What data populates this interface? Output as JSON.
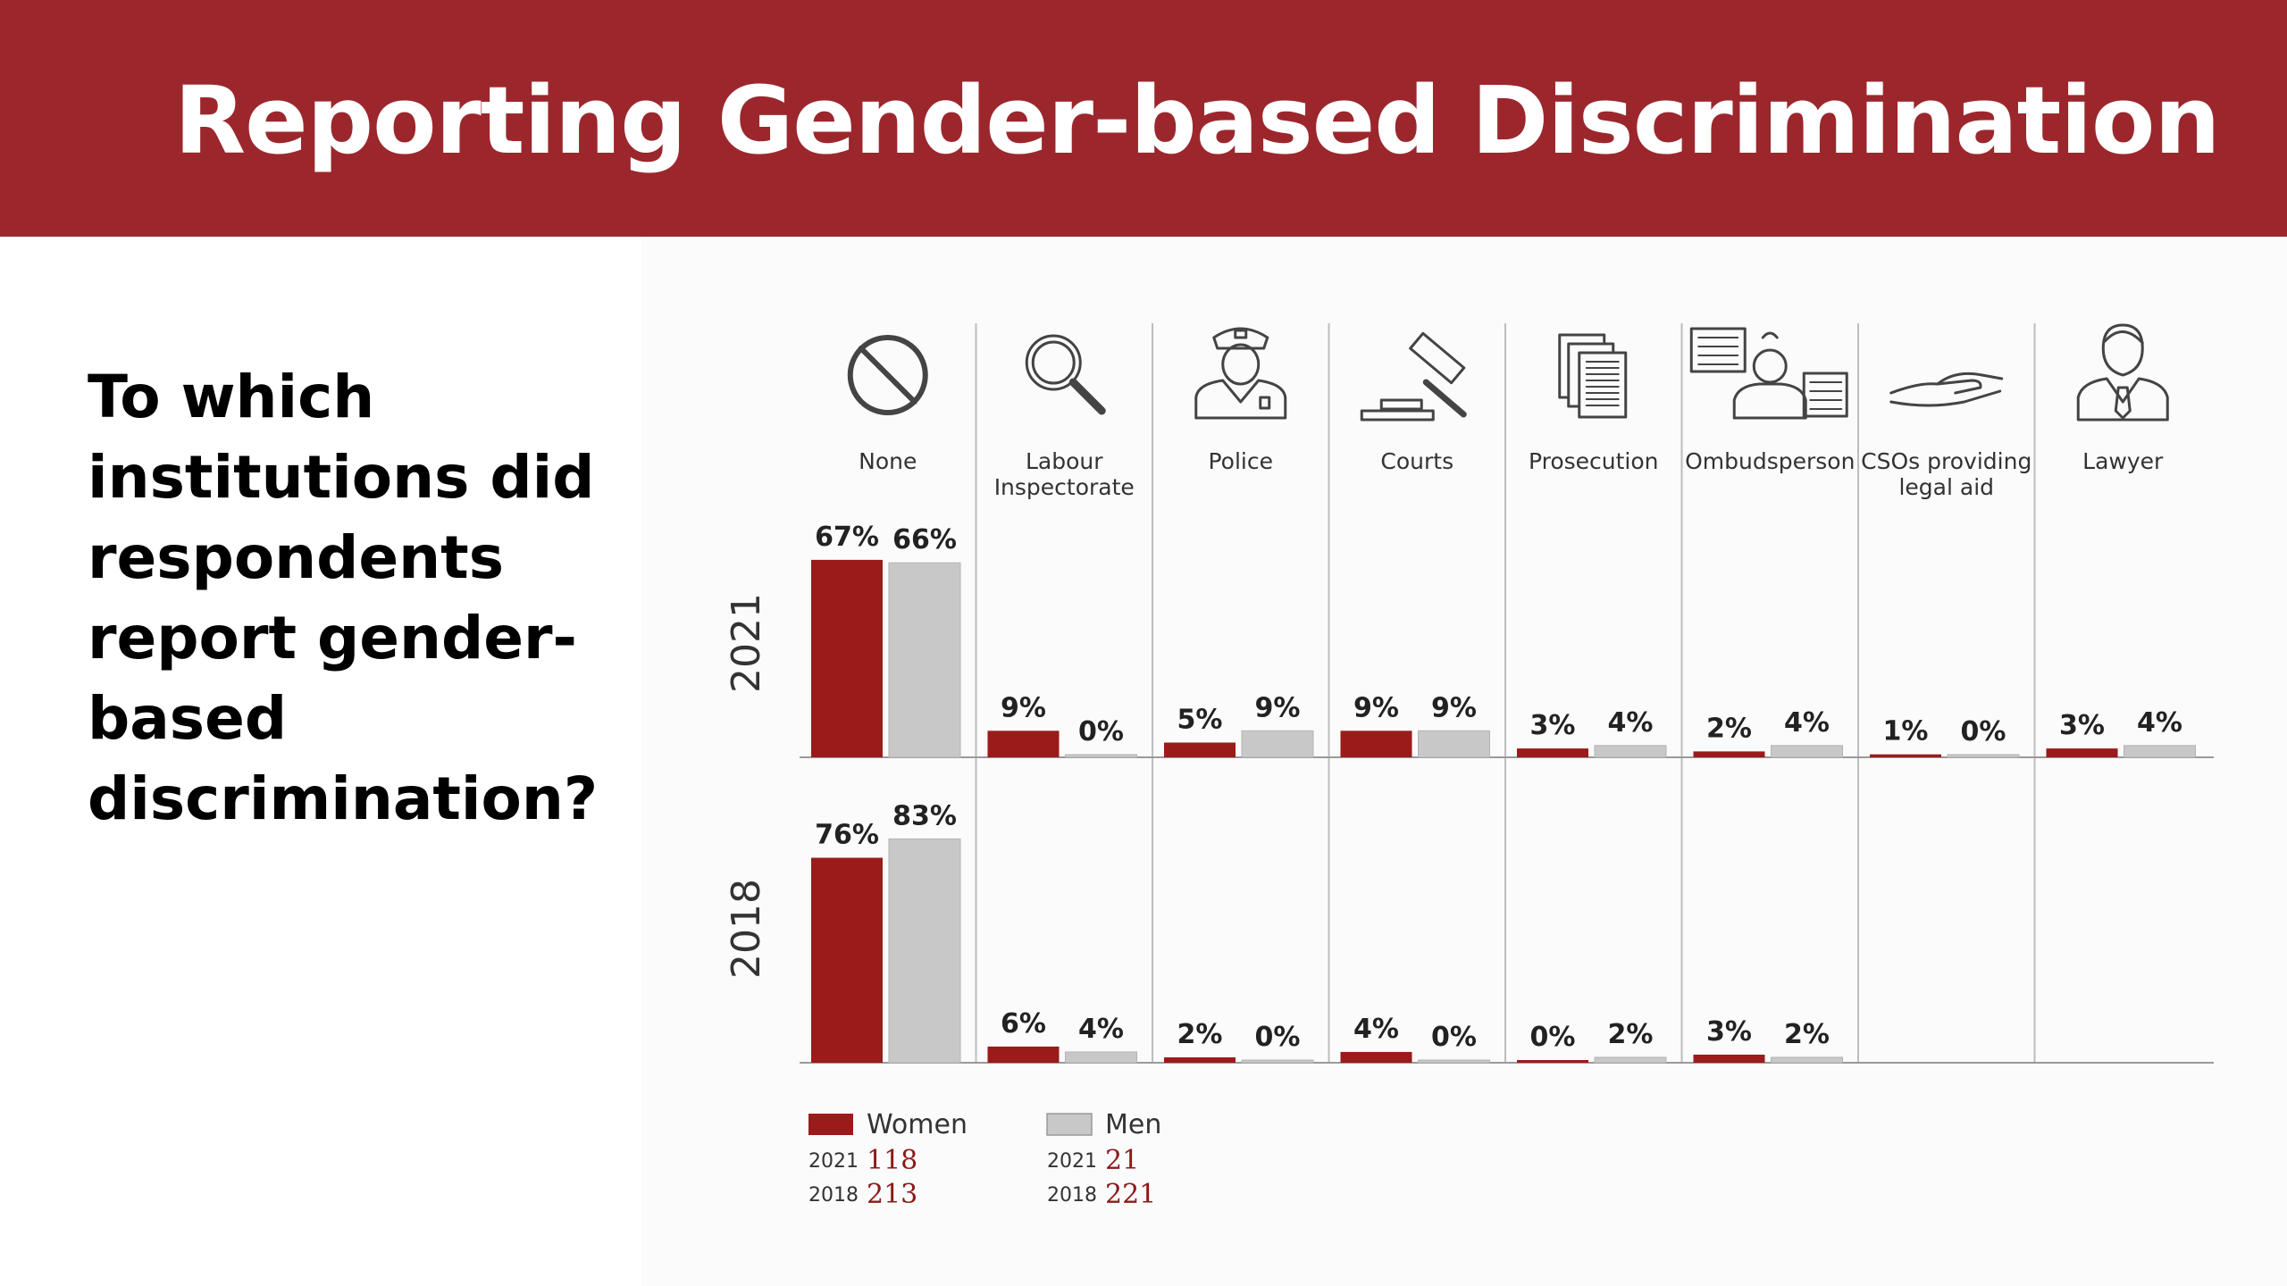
{
  "header": {
    "title": "Reporting Gender-based Discrimination"
  },
  "question": "To which institutions did respondents report gender-based discrimination?",
  "colors": {
    "banner": "#9b272d",
    "women": "#9b1b1b",
    "men": "#c8c8c8",
    "sample_text": "#8b1a1a"
  },
  "chart_data": {
    "type": "bar",
    "categories": [
      {
        "label": "None",
        "label_lines": [
          "None"
        ],
        "icon": "prohibited-icon"
      },
      {
        "label": "Labour Inspectorate",
        "label_lines": [
          "Labour",
          "Inspectorate"
        ],
        "icon": "magnifier-icon"
      },
      {
        "label": "Police",
        "label_lines": [
          "Police"
        ],
        "icon": "police-officer-icon"
      },
      {
        "label": "Courts",
        "label_lines": [
          "Courts"
        ],
        "icon": "gavel-icon"
      },
      {
        "label": "Prosecution",
        "label_lines": [
          "Prosecution"
        ],
        "icon": "documents-icon"
      },
      {
        "label": "Ombudsperson",
        "label_lines": [
          "Ombudsperson"
        ],
        "icon": "ombudsperson-icon"
      },
      {
        "label": "CSOs providing legal aid",
        "label_lines": [
          "CSOs providing",
          "legal aid"
        ],
        "icon": "helping-hand-icon"
      },
      {
        "label": "Lawyer",
        "label_lines": [
          "Lawyer"
        ],
        "icon": "lawyer-icon"
      }
    ],
    "panels": [
      {
        "year": "2021",
        "series": [
          {
            "name": "Women",
            "values": [
              67,
              9,
              5,
              9,
              3,
              2,
              1,
              3
            ],
            "labels": [
              "67%",
              "9%",
              "5%",
              "9%",
              "3%",
              "2%",
              "1%",
              "3%"
            ]
          },
          {
            "name": "Men",
            "values": [
              66,
              0,
              9,
              9,
              4,
              4,
              0,
              4
            ],
            "labels": [
              "66%",
              "0%",
              "9%",
              "9%",
              "4%",
              "4%",
              "0%",
              "4%"
            ]
          }
        ]
      },
      {
        "year": "2018",
        "series": [
          {
            "name": "Women",
            "values": [
              76,
              6,
              2,
              4,
              0,
              3,
              null,
              null
            ],
            "labels": [
              "76%",
              "6%",
              "2%",
              "4%",
              "0%",
              "3%",
              "",
              ""
            ]
          },
          {
            "name": "Men",
            "values": [
              83,
              4,
              0,
              0,
              2,
              2,
              null,
              null
            ],
            "labels": [
              "83%",
              "4%",
              "0%",
              "0%",
              "2%",
              "2%",
              "",
              ""
            ]
          }
        ]
      }
    ],
    "unit": "%",
    "legend": {
      "placement": "bottom-left",
      "entries": [
        {
          "name": "Women",
          "samples": [
            {
              "year": "2021",
              "n": "118"
            },
            {
              "year": "2018",
              "n": "213"
            }
          ]
        },
        {
          "name": "Men",
          "samples": [
            {
              "year": "2021",
              "n": "21"
            },
            {
              "year": "2018",
              "n": "221"
            }
          ]
        }
      ]
    },
    "grid": false
  }
}
